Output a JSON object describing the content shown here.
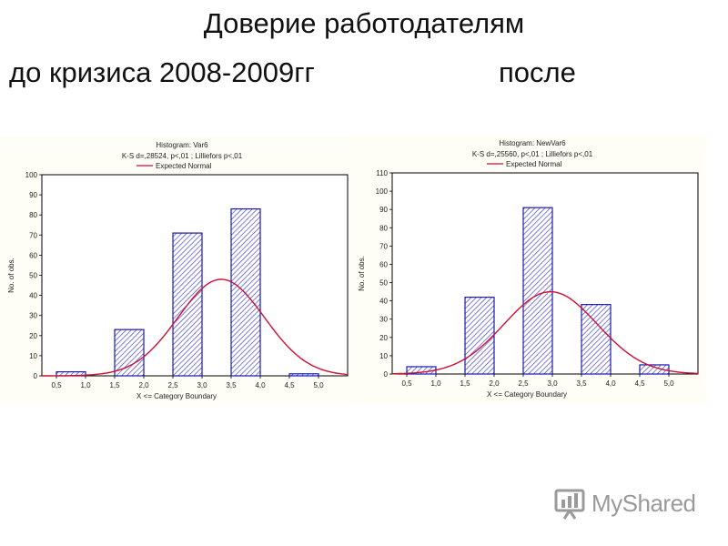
{
  "slide": {
    "title": "Доверие работодателям",
    "subtitle_left": "до кризиса 2008-2009гг",
    "subtitle_right": "после"
  },
  "watermark": {
    "text": "MyShared",
    "icon": "myshared-logo-icon"
  },
  "colors": {
    "bar_stroke": "#1a1ab0",
    "bar_hatch": "#3a3ad0",
    "curve": "#cc1030",
    "panel_bg": "#fefdf6",
    "plot_bg": "#ffffff"
  },
  "chart_data": [
    {
      "type": "bar",
      "title": "Histogram: Var6",
      "subtitle": "K-S d=,28524, p<,01 ; Lilliefors p<,01",
      "legend": "Expected Normal",
      "legend_position": "top-left",
      "xlabel": "X <= Category Boundary",
      "ylabel": "No. of obs.",
      "xlim": [
        0.25,
        5.5
      ],
      "ylim": [
        0,
        100
      ],
      "yticks": [
        0,
        10,
        20,
        30,
        40,
        50,
        60,
        70,
        80,
        90,
        100
      ],
      "xtick_labels": [
        "0,5",
        "1,0",
        "1,5",
        "2,0",
        "2,5",
        "3,0",
        "3,5",
        "4,0",
        "4,5",
        "5,0"
      ],
      "bins": [
        [
          0.5,
          1.0
        ],
        [
          1.5,
          2.0
        ],
        [
          2.5,
          3.0
        ],
        [
          3.5,
          4.0
        ],
        [
          4.5,
          5.0
        ]
      ],
      "values": [
        2,
        23,
        71,
        83,
        1
      ],
      "normal_curve": {
        "mean": 3.33,
        "sd": 0.74,
        "peak": 48
      },
      "grid": false
    },
    {
      "type": "bar",
      "title": "Histogram: NewVar6",
      "subtitle": "K-S d=,25560, p<,01 ; Lilliefors p<,01",
      "legend": "Expected Normal",
      "legend_position": "top-left",
      "xlabel": "X <= Category Boundary",
      "ylabel": "No. of obs.",
      "xlim": [
        0.25,
        5.5
      ],
      "ylim": [
        0,
        110
      ],
      "yticks": [
        0,
        10,
        20,
        30,
        40,
        50,
        60,
        70,
        80,
        90,
        100,
        110
      ],
      "xtick_labels": [
        "0,5",
        "1,0",
        "1,5",
        "2,0",
        "2,5",
        "3,0",
        "3,5",
        "4,0",
        "4,5",
        "5,0"
      ],
      "bins": [
        [
          0.5,
          1.0
        ],
        [
          1.5,
          2.0
        ],
        [
          2.5,
          3.0
        ],
        [
          3.5,
          4.0
        ],
        [
          4.5,
          5.0
        ]
      ],
      "values": [
        4,
        42,
        91,
        38,
        5
      ],
      "normal_curve": {
        "mean": 2.97,
        "sd": 0.8,
        "peak": 45
      },
      "grid": false
    }
  ]
}
